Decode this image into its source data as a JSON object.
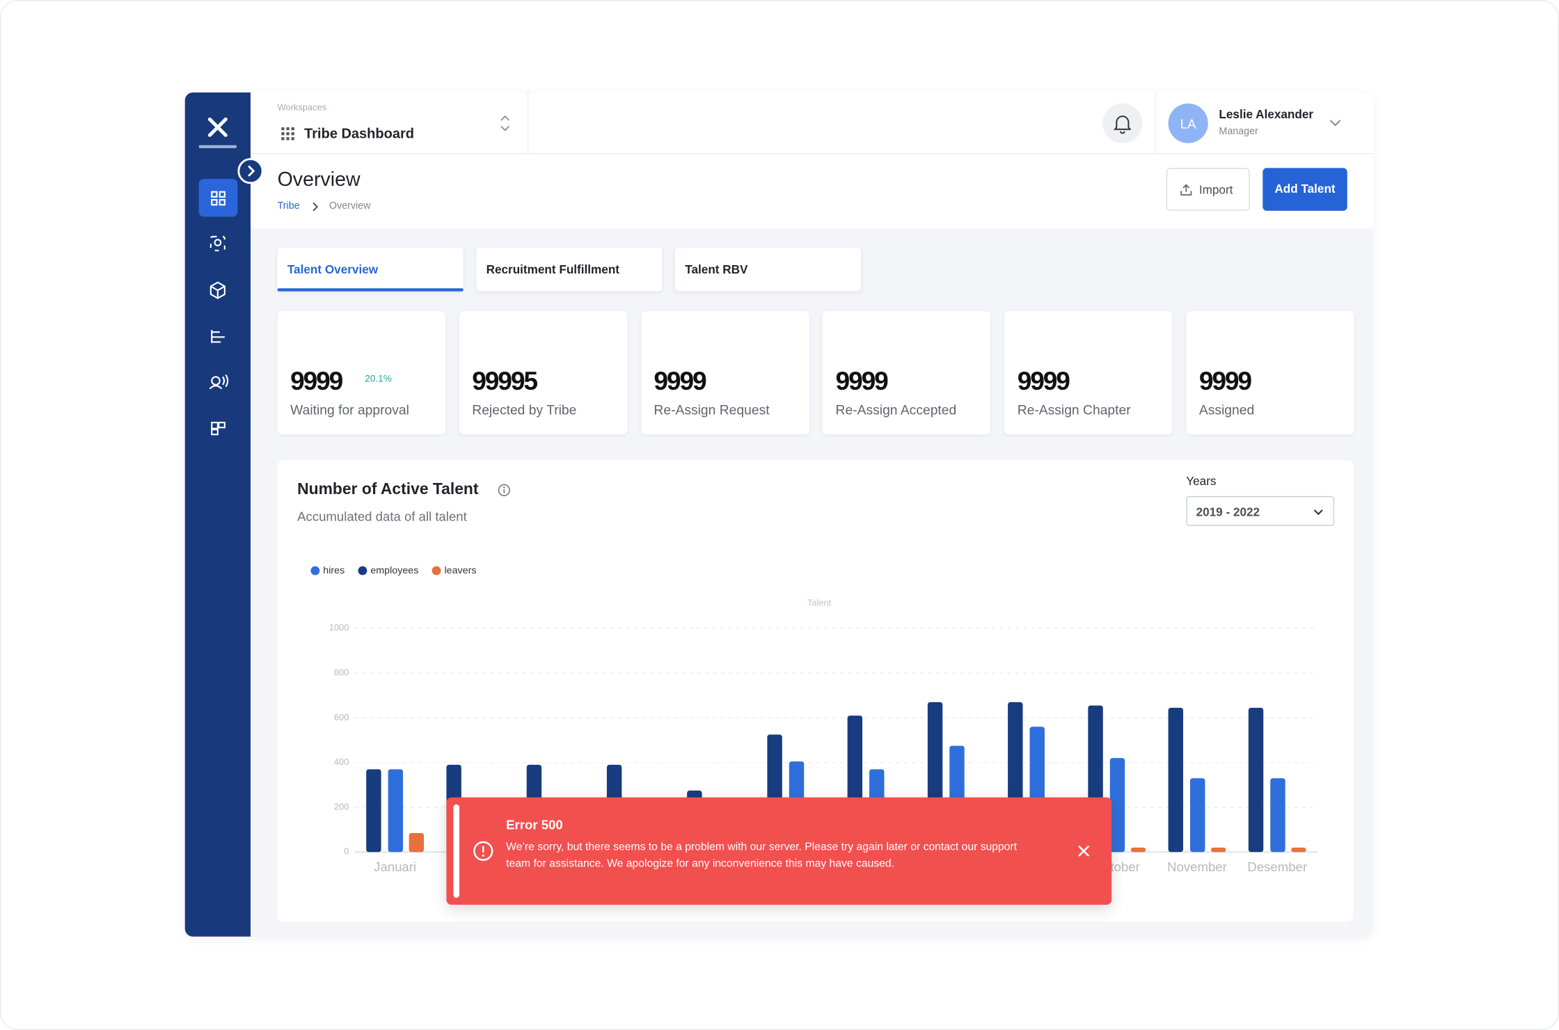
{
  "header": {
    "workspace_label": "Workspaces",
    "workspace": "Tribe Dashboard",
    "user": {
      "initials": "LA",
      "name": "Leslie Alexander",
      "role": "Manager"
    }
  },
  "page": {
    "title": "Overview",
    "breadcrumb": [
      "Tribe",
      "Overview"
    ],
    "actions": [
      "Import",
      "Add Talent"
    ]
  },
  "tabs": [
    "Talent Overview",
    "Recruitment Fulfillment",
    "Talent RBV"
  ],
  "stats": [
    {
      "value": 9999,
      "label": "Waiting for approval",
      "change": "20.1%"
    },
    {
      "value": 99995,
      "label": "Rejected by Tribe"
    },
    {
      "value": 9999,
      "label": "Re-Assign Request"
    },
    {
      "value": 9999,
      "label": "Re-Assign Accepted"
    },
    {
      "value": 9999,
      "label": "Re-Assign Chapter"
    },
    {
      "value": 9999,
      "label": "Assigned"
    }
  ],
  "chart_card": {
    "title": "Number of Active Talent",
    "subtitle": "Accumulated data of all talent",
    "filter_label": "Years",
    "filter_value": "2019 - 2022"
  },
  "chart_data": {
    "type": "bar",
    "ylabel": "Talent",
    "categories": [
      "Januari",
      null,
      null,
      null,
      null,
      null,
      null,
      null,
      null,
      "Oktober",
      "November",
      "Desember"
    ],
    "series": [
      {
        "name": "hires",
        "color": "#2f6fdc",
        "values": [
          370,
          null,
          null,
          null,
          null,
          405,
          370,
          475,
          560,
          420,
          330,
          330
        ]
      },
      {
        "name": "employees",
        "color": "#183c80",
        "values": [
          370,
          390,
          390,
          390,
          275,
          525,
          610,
          670,
          670,
          655,
          645,
          645
        ]
      },
      {
        "name": "leavers",
        "color": "#e8703d",
        "values": [
          85,
          null,
          null,
          null,
          null,
          null,
          null,
          null,
          null,
          20,
          20,
          20
        ]
      }
    ],
    "ylim": [
      0,
      1000
    ],
    "yticks": [
      0,
      200,
      400,
      600,
      800,
      1000
    ],
    "grid": true
  },
  "toast": {
    "title": "Error 500",
    "message": "We’re sorry, but there seems to be a problem with our server.  Please try again later or contact our support team for assistance. We apologize for any inconvenience this may have caused."
  }
}
